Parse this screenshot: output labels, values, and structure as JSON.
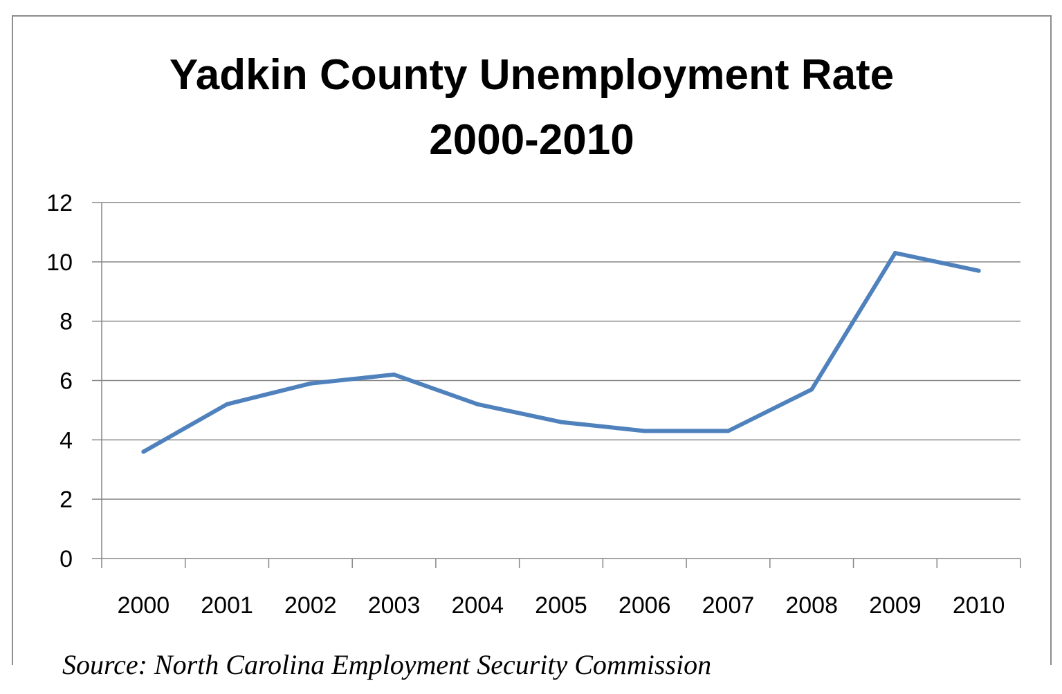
{
  "chart_data": {
    "type": "line",
    "title": [
      "Yadkin County Unemployment Rate",
      "2000-2010"
    ],
    "xlabel": "",
    "ylabel": "",
    "categories": [
      "2000",
      "2001",
      "2002",
      "2003",
      "2004",
      "2005",
      "2006",
      "2007",
      "2008",
      "2009",
      "2010"
    ],
    "series": [
      {
        "values": [
          3.6,
          5.2,
          5.9,
          6.2,
          5.2,
          4.6,
          4.3,
          4.3,
          5.7,
          10.3,
          9.7
        ],
        "color": "#4f81bd"
      }
    ],
    "ylim": [
      0,
      12
    ],
    "yticks": [
      "0",
      "2",
      "4",
      "6",
      "8",
      "10",
      "12"
    ],
    "grid": "horizontal",
    "legend": "none"
  },
  "source": "Source: North Carolina Employment Security Commission"
}
